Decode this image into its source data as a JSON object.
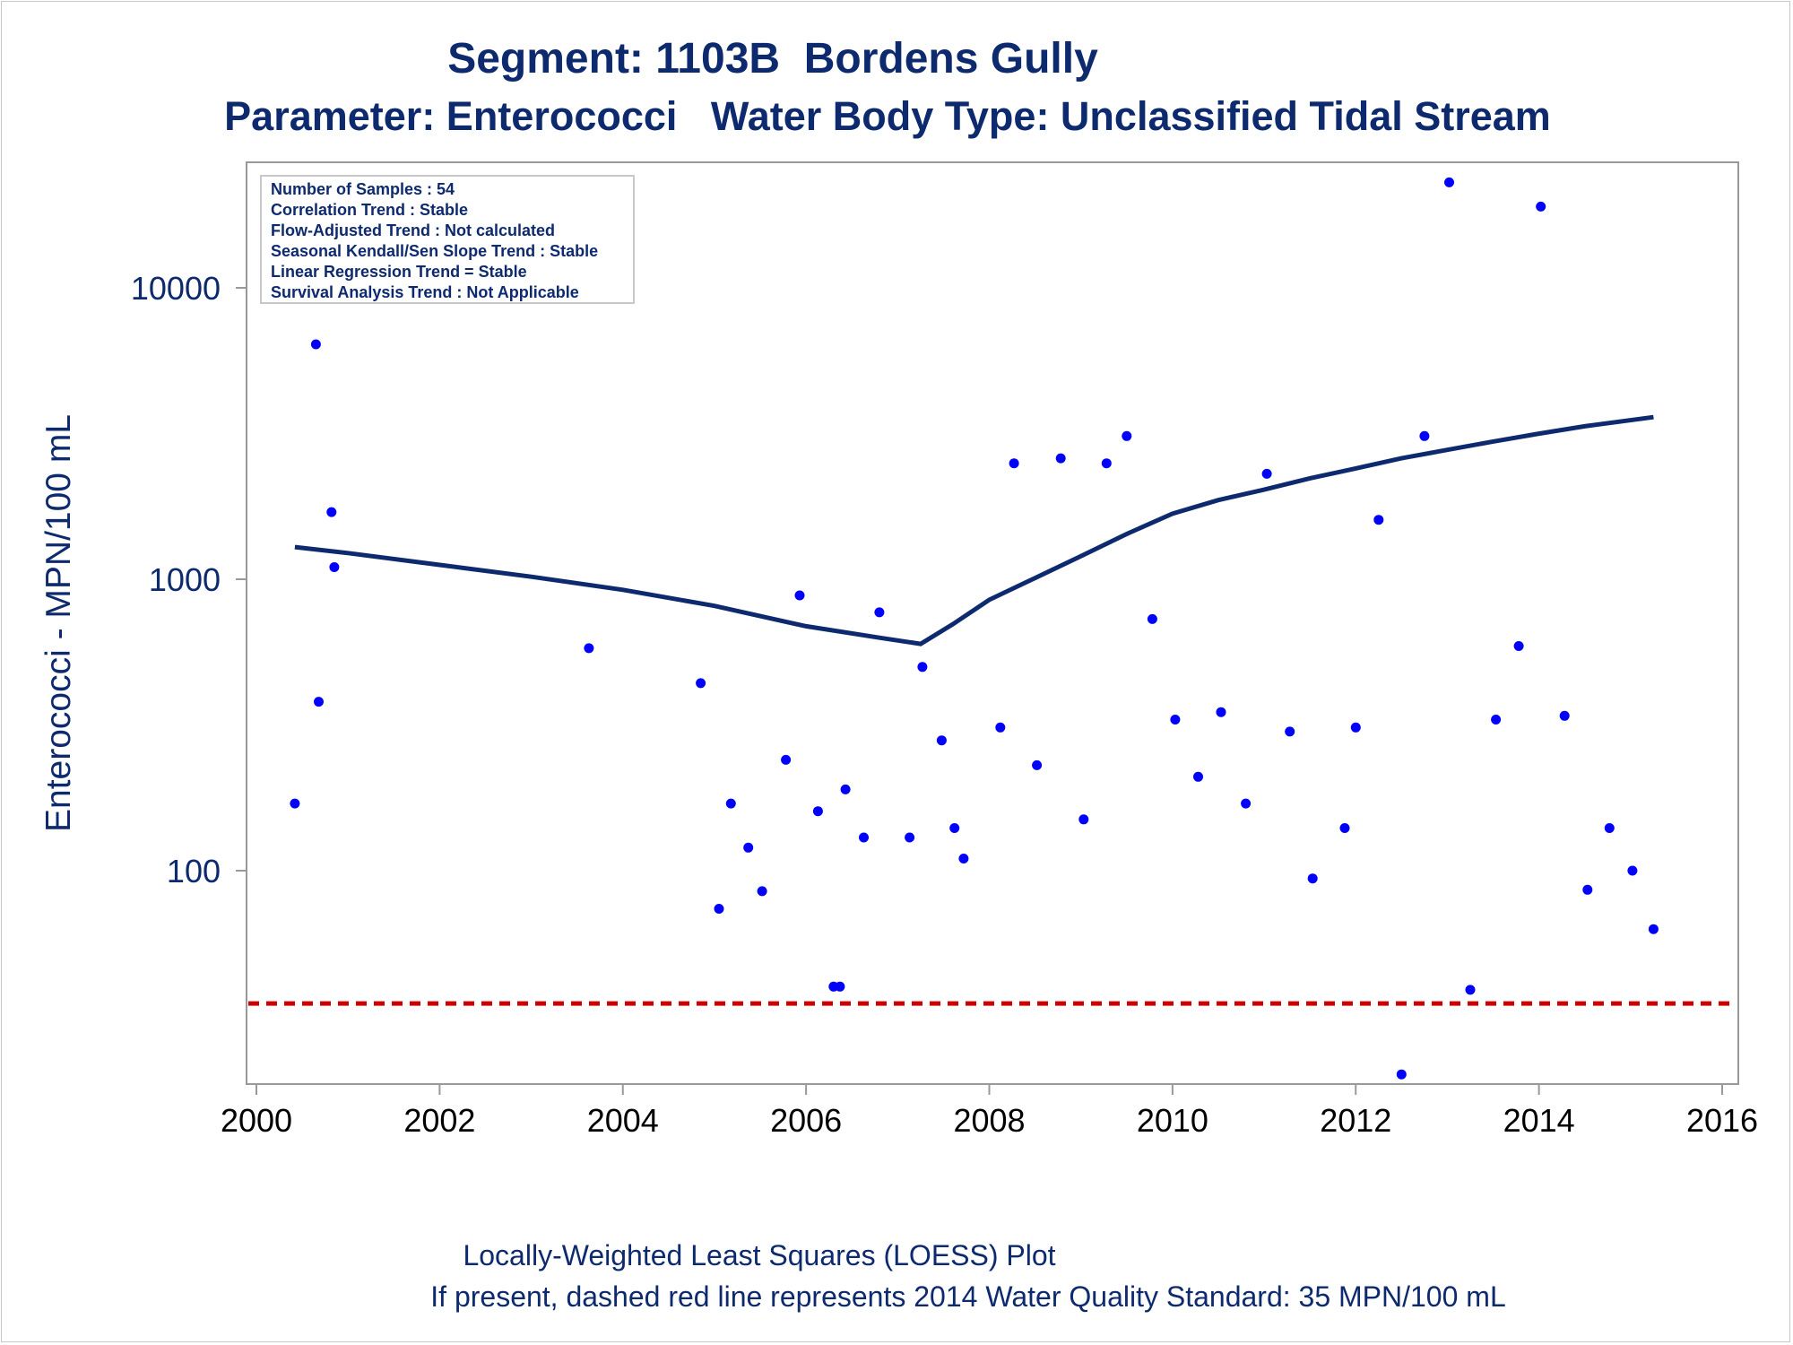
{
  "title": "Segment: 1103B  Bordens Gully",
  "subtitle": "Parameter: Enterococci   Water Body Type: Unclassified Tidal Stream",
  "footnote1": "Locally-Weighted Least Squares (LOESS) Plot",
  "footnote2": "If present, dashed red line represents 2014 Water Quality Standard: 35 MPN/100 mL",
  "info_box": [
    "Number of Samples : 54",
    "Correlation Trend : Stable",
    "Flow-Adjusted Trend : Not calculated",
    "Seasonal Kendall/Sen Slope Trend : Stable",
    "Linear Regression Trend = Stable",
    "Survival Analysis Trend : Not Applicable"
  ],
  "colors": {
    "text": "#0e2a6e",
    "points": "#0000ff",
    "loess": "#0e2a6e",
    "standard": "#cc0000",
    "axis": "#999999"
  },
  "chart_data": {
    "type": "scatter",
    "ylabel": "Enterococci - MPN/100 mL",
    "xlabel": "",
    "yscale": "log",
    "xlim": [
      2000,
      2016
    ],
    "ylim": [
      19,
      24000
    ],
    "xticks": [
      "2000",
      "2002",
      "2004",
      "2006",
      "2008",
      "2010",
      "2012",
      "2014",
      "2016"
    ],
    "yticks": [
      {
        "value": 100,
        "label": "100"
      },
      {
        "value": 1000,
        "label": "1000"
      },
      {
        "value": 10000,
        "label": "10000"
      }
    ],
    "standard_line": 35,
    "grid": false,
    "points": [
      [
        2000.42,
        170
      ],
      [
        2000.65,
        6400
      ],
      [
        2000.68,
        380
      ],
      [
        2000.82,
        1700
      ],
      [
        2000.85,
        1100
      ],
      [
        2003.63,
        580
      ],
      [
        2004.85,
        440
      ],
      [
        2005.05,
        74
      ],
      [
        2005.18,
        170
      ],
      [
        2005.37,
        120
      ],
      [
        2005.52,
        85
      ],
      [
        2005.78,
        240
      ],
      [
        2005.93,
        880
      ],
      [
        2006.13,
        160
      ],
      [
        2006.3,
        40
      ],
      [
        2006.37,
        40
      ],
      [
        2006.43,
        190
      ],
      [
        2006.63,
        130
      ],
      [
        2006.8,
        770
      ],
      [
        2007.13,
        130
      ],
      [
        2007.27,
        500
      ],
      [
        2007.48,
        280
      ],
      [
        2007.62,
        140
      ],
      [
        2007.72,
        110
      ],
      [
        2008.12,
        310
      ],
      [
        2008.27,
        2500
      ],
      [
        2008.52,
        230
      ],
      [
        2008.78,
        2600
      ],
      [
        2009.03,
        150
      ],
      [
        2009.28,
        2500
      ],
      [
        2009.5,
        3100
      ],
      [
        2009.78,
        730
      ],
      [
        2010.03,
        330
      ],
      [
        2010.28,
        210
      ],
      [
        2010.53,
        350
      ],
      [
        2010.8,
        170
      ],
      [
        2011.03,
        2300
      ],
      [
        2011.28,
        300
      ],
      [
        2011.53,
        94
      ],
      [
        2011.88,
        140
      ],
      [
        2012.0,
        310
      ],
      [
        2012.25,
        1600
      ],
      [
        2012.5,
        20
      ],
      [
        2012.75,
        3100
      ],
      [
        2013.02,
        23000
      ],
      [
        2013.25,
        39
      ],
      [
        2013.53,
        330
      ],
      [
        2013.78,
        590
      ],
      [
        2014.02,
        19000
      ],
      [
        2014.28,
        340
      ],
      [
        2014.53,
        86
      ],
      [
        2014.77,
        140
      ],
      [
        2015.02,
        100
      ],
      [
        2015.25,
        63
      ]
    ],
    "series": [
      {
        "type": "line",
        "values": [
          [
            2000.42,
            1290
          ],
          [
            2001,
            1230
          ],
          [
            2002,
            1120
          ],
          [
            2003,
            1020
          ],
          [
            2004,
            920
          ],
          [
            2005,
            810
          ],
          [
            2006,
            690
          ],
          [
            2006.8,
            630
          ],
          [
            2007.25,
            600
          ],
          [
            2007.6,
            700
          ],
          [
            2008,
            850
          ],
          [
            2008.5,
            1010
          ],
          [
            2009,
            1200
          ],
          [
            2009.5,
            1430
          ],
          [
            2010,
            1680
          ],
          [
            2010.5,
            1870
          ],
          [
            2011,
            2030
          ],
          [
            2011.5,
            2220
          ],
          [
            2012,
            2400
          ],
          [
            2012.5,
            2600
          ],
          [
            2013,
            2780
          ],
          [
            2013.5,
            2970
          ],
          [
            2014,
            3160
          ],
          [
            2014.5,
            3350
          ],
          [
            2015.25,
            3600
          ]
        ]
      }
    ]
  }
}
